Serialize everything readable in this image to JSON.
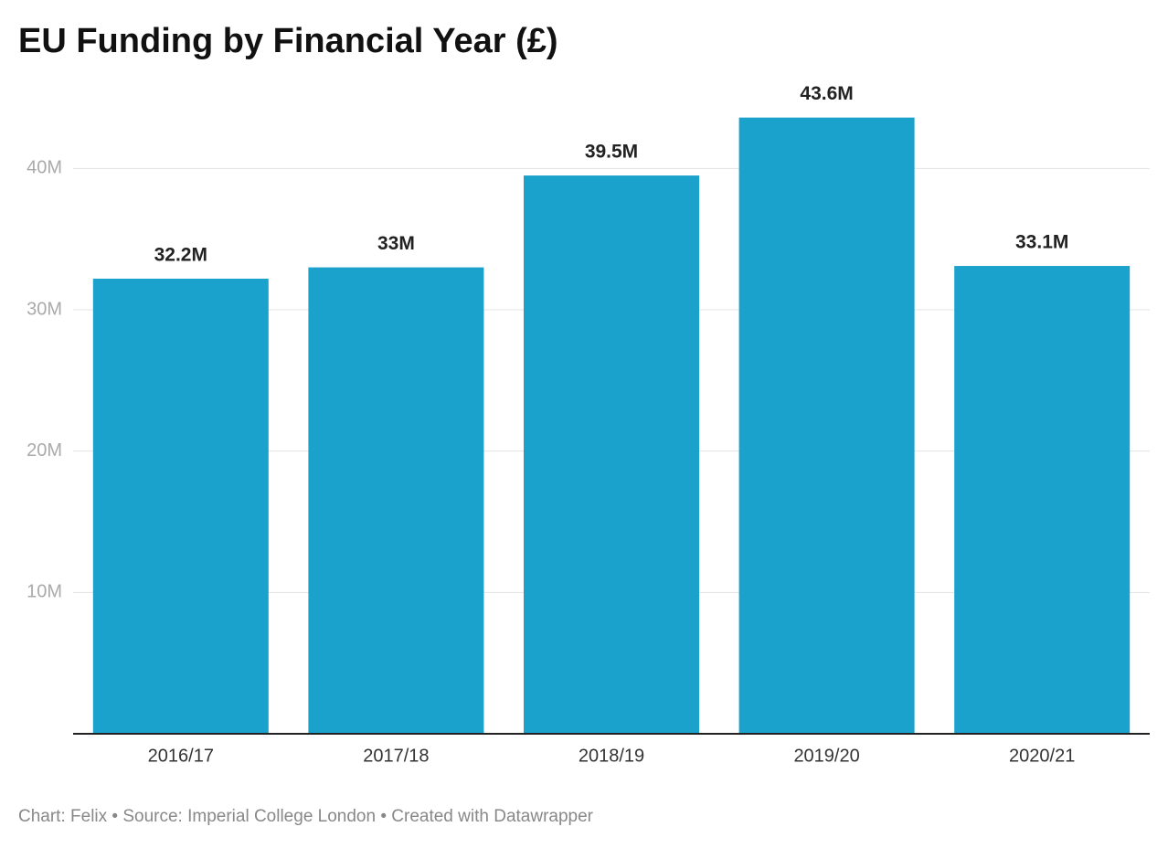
{
  "chart_data": {
    "type": "bar",
    "title": "EU Funding by Financial Year (£)",
    "categories": [
      "2016/17",
      "2017/18",
      "2018/19",
      "2019/20",
      "2020/21"
    ],
    "values": [
      32200000,
      33000000,
      39500000,
      43600000,
      33100000
    ],
    "value_labels": [
      "32.2M",
      "33M",
      "39.5M",
      "43.6M",
      "33.1M"
    ],
    "color": "#1aa1cc",
    "ylim": [
      0,
      45000000
    ],
    "yticks": [
      {
        "value": 10000000,
        "label": "10M"
      },
      {
        "value": 20000000,
        "label": "20M"
      },
      {
        "value": 30000000,
        "label": "30M"
      },
      {
        "value": 40000000,
        "label": "40M"
      }
    ],
    "grid": true,
    "source": "Chart: Felix • Source: Imperial College London • Created with Datawrapper"
  }
}
